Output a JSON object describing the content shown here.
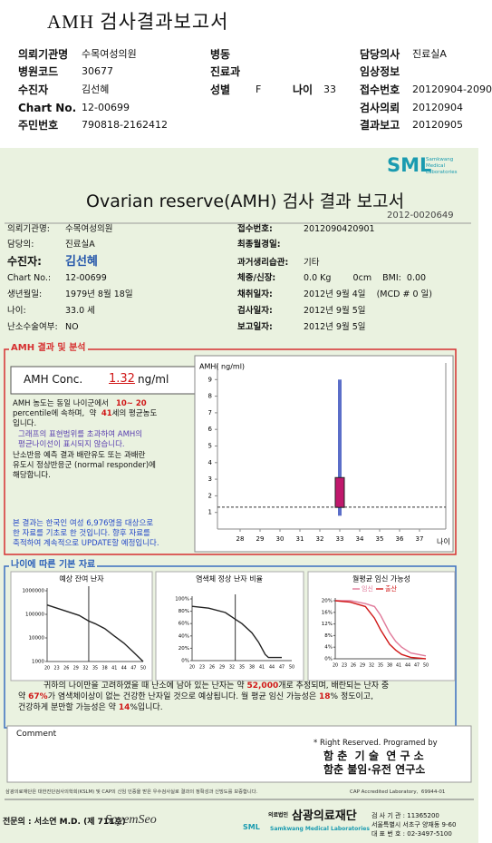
{
  "header": {
    "title": "AMH 검사결과보고서",
    "rows": [
      [
        "의뢰기관명",
        "수목여성의원",
        "병동",
        "담당의사",
        "진료실A"
      ],
      [
        "병원코드",
        "30677",
        "진료과",
        "임상정보"
      ],
      [
        "수진자",
        "김선혜",
        "성별",
        "F",
        "나이",
        "33",
        "접수번호",
        "20120904-2090"
      ],
      [
        "Chart No.",
        "12-00699",
        "검사의뢰",
        "20120904"
      ],
      [
        "주민번호",
        "790818-2162412",
        "결과보고",
        "20120905"
      ]
    ]
  },
  "logo": {
    "mark": "SML",
    "sub": [
      "Samkwang",
      "Medical",
      "Laboratories"
    ]
  },
  "report": {
    "title": "Ovarian reserve(AMH) 검사 결과 보고서",
    "number": "2012-0020649"
  },
  "info": {
    "rows": [
      [
        "의뢰기관명:",
        "수목여성의원",
        "접수번호:",
        "2012090420901"
      ],
      [
        "담당의:",
        "진료실A",
        "최종월경일:"
      ],
      [
        "수진자:",
        "김선혜",
        "과거생리습관:",
        "기타"
      ],
      [
        "Chart No.:",
        "12-00699",
        "체중/신장:",
        "0.0 Kg        0cm    BMI:  0.00"
      ],
      [
        "생년월일:",
        "1979년 8월 18일",
        "채취일자:",
        "2012년 9월 4일    (MCD # 0 일)"
      ],
      [
        "나이:",
        "33.0 세",
        "검사일자:",
        "2012년 9월 5일"
      ],
      [
        "난소수술여부:",
        "NO",
        "보고일자:",
        "2012년 9월 5일"
      ]
    ]
  },
  "amh": {
    "section_title": "AMH 결과 및 분석",
    "conc_label": "AMH Conc.",
    "conc": 1.32,
    "unit": "ng/ml",
    "paragraphs": [
      {
        "color": "#111111",
        "lines": [
          [
            "AMH 농도는 동일 나이군에서   ",
            "10~ 20"
          ],
          [
            "percentile에 속하며,  약  ",
            "41",
            "세의 평균농도"
          ],
          [
            "입니다."
          ]
        ]
      },
      {
        "color": "#5a3fb0",
        "lines": [
          [
            "그래프의 표현범위를 초과하여 AMH의"
          ],
          [
            "평균나이선이 표시되지 않습니다."
          ]
        ]
      },
      {
        "color": "#111111",
        "lines": [
          [
            "난소반응 예측 결과 배란유도 또는 과배란"
          ],
          [
            "유도시 정상반응군 (normal responder)에"
          ],
          [
            "해당합니다."
          ]
        ]
      },
      {
        "color": "#2448c8",
        "lines": [
          [
            "본 결과는 한국인 여성 6,976명을 대상으로"
          ],
          [
            "한 자료를 기초로 한 것입니다. 향후 자료를"
          ],
          [
            "축적하여 계속적으로 UPDATE할 예정입니다."
          ]
        ]
      }
    ],
    "chart": {
      "type": "box",
      "y_label": "AMH( ng/ml)",
      "x_label": "나이",
      "xlim": [
        26.5,
        38.5
      ],
      "xticks": [
        28,
        29,
        30,
        31,
        32,
        33,
        34,
        35,
        36,
        37
      ],
      "ylim": [
        0,
        10
      ],
      "yticks": [
        1,
        2,
        3,
        4,
        5,
        6,
        7,
        8,
        9
      ],
      "range": {
        "age": 33,
        "low": 0.8,
        "high": 9,
        "q1": 1.3,
        "q3": 3.1
      },
      "whisker_color": "#5b6ec8",
      "box_color": "#c0186c"
    }
  },
  "basic": {
    "title": "나이에 따른 기본 자료",
    "charts": [
      {
        "type": "line",
        "title": "예상 잔여 난자",
        "log": true,
        "xlim": [
          20,
          50
        ],
        "xticks": [
          20,
          23,
          26,
          29,
          32,
          35,
          38,
          41,
          44,
          47,
          50
        ],
        "ylim": [
          1000,
          1000000
        ],
        "yticks": [
          1000,
          10000,
          100000,
          1000000
        ],
        "marker": 33,
        "x": [
          20,
          25,
          30,
          33,
          35,
          38,
          41,
          44,
          47,
          50
        ],
        "series": [
          {
            "color": "#222222",
            "values": [
              250000,
              150000,
              90000,
              52000,
              40000,
              25000,
              12000,
              6000,
              2500,
              1000
            ]
          }
        ]
      },
      {
        "type": "line",
        "title": "염색체 정상 난자 비율",
        "xlim": [
          20,
          50
        ],
        "xticks": [
          20,
          23,
          26,
          29,
          32,
          35,
          38,
          41,
          44,
          47,
          50
        ],
        "ylim": [
          0,
          100
        ],
        "yticks": [
          {
            "value": 0,
            "label": "0%"
          },
          {
            "value": 20,
            "label": "20%"
          },
          {
            "value": 40,
            "label": "40%"
          },
          {
            "value": 60,
            "label": "60%"
          },
          {
            "value": 80,
            "label": "80%"
          },
          {
            "value": 100,
            "label": "100%"
          }
        ],
        "marker": 33,
        "x": [
          20,
          25,
          30,
          33,
          35,
          38,
          40,
          42,
          43,
          44,
          47
        ],
        "series": [
          {
            "color": "#222222",
            "values": [
              88,
              85,
              78,
              67,
              60,
              45,
              30,
              10,
              5,
              5,
              5
            ]
          }
        ]
      },
      {
        "type": "line",
        "title": "월평균 임신 가능성",
        "xlim": [
          20,
          50
        ],
        "xticks": [
          20,
          23,
          26,
          29,
          32,
          35,
          38,
          41,
          44,
          47,
          50
        ],
        "ylim": [
          0,
          20
        ],
        "yticks": [
          {
            "value": 0,
            "label": "0%"
          },
          {
            "value": 4,
            "label": "4%"
          },
          {
            "value": 8,
            "label": "8%"
          },
          {
            "value": 12,
            "label": "12%"
          },
          {
            "value": 16,
            "label": "16%"
          },
          {
            "value": 20,
            "label": "20%"
          }
        ],
        "x": [
          20,
          25,
          30,
          33,
          35,
          38,
          40,
          42,
          45,
          50
        ],
        "series": [
          {
            "name": "임신",
            "color": "#e07a9a",
            "values": [
              20,
              20,
              19,
              18,
              15,
              9,
              6,
              4,
              2,
              1
            ]
          },
          {
            "name": "출산",
            "color": "#d01818",
            "values": [
              20,
              19.5,
              18,
              14,
              10,
              5,
              3,
              1.5,
              0.5,
              0
            ]
          }
        ]
      }
    ],
    "summary": [
      [
        "귀하의 나이만을 고려하였을 때 난소에 남아 있는 난자는 약 ",
        "52,000",
        "개로 추정되며, 배란되는 난자 중"
      ],
      [
        "약 ",
        "67%",
        "가 염색체이상이 없는 건강한 난자일 것으로 예상됩니다. 월 평균 임신 가능성은 ",
        "18",
        "% 정도이고,"
      ],
      [
        "건강하게 분만할 가능성은 약 ",
        "14",
        "%입니다."
      ]
    ]
  },
  "comment": {
    "label": "Comment"
  },
  "credits": [
    "* Right Reserved. Programed by",
    "함 춘  기 술  연 구 소",
    "함춘 불임·유전 연구소"
  ],
  "footer": {
    "notice": "삼광의료재단은 대한진단검사의학회(KSLM) 및 CAP의 신임 인증을 받은 우수검사실로 결과의 정확성과 신빙도를 보증합니다.",
    "cap": "CAP Accredited Laboratory,  69944-01",
    "specialist": "전문의 : 서소연 M.D. (제 711호)",
    "signature": "SoyemSeo",
    "logo_mark": "SML",
    "org_prefix": "의료법인",
    "org": "삼광의료재단",
    "org_en": "Samkwang Medical Laboratories",
    "contact": [
      "검 사 기 관 : 11365200",
      "서울특별시 서초구 양재동 9-60",
      "대 표 번 호 : 02-3497-5100"
    ]
  }
}
